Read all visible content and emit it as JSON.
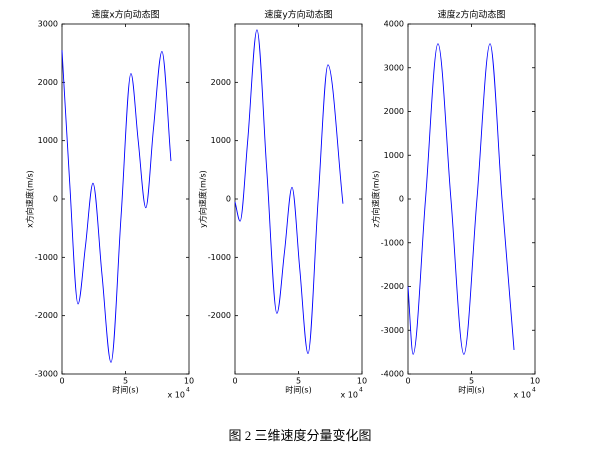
{
  "chart_data": [
    {
      "type": "line",
      "title": "速度x方向动态图",
      "xlabel": "时间(s)",
      "ylabel": "x方向速度(m/s)",
      "xlim": [
        0,
        10
      ],
      "xticks": [
        0,
        5,
        10
      ],
      "ylim": [
        -3000,
        3000
      ],
      "yticks": [
        -3000,
        -2000,
        -1000,
        0,
        1000,
        2000,
        3000
      ],
      "x_scale_text": "x 10",
      "x_scale_exponent": "4",
      "series": [
        {
          "color": "#0000ff",
          "x": [
            0,
            0.6,
            1.26,
            1.85,
            2.44,
            3.15,
            3.86,
            4.65,
            5.43,
            6.0,
            6.6,
            7.2,
            7.87,
            8.58
          ],
          "values": [
            2550,
            300,
            -1800,
            -800,
            270,
            -1300,
            -2800,
            -300,
            2150,
            1000,
            -150,
            1200,
            2530,
            650
          ]
        }
      ]
    },
    {
      "type": "line",
      "title": "速度y方向动态图",
      "xlabel": "时间(s)",
      "ylabel": "y方向速度(m/s)",
      "xlim": [
        0,
        10
      ],
      "xticks": [
        0,
        5,
        10
      ],
      "ylim": [
        -3000,
        3000
      ],
      "yticks": [
        -2000,
        -1000,
        0,
        1000,
        2000
      ],
      "x_scale_text": "x 10",
      "x_scale_exponent": "4",
      "series": [
        {
          "color": "#0000ff",
          "x": [
            0,
            0.4,
            1.0,
            1.73,
            2.5,
            3.3,
            3.9,
            4.49,
            5.1,
            5.75,
            6.55,
            7.32,
            8.5
          ],
          "values": [
            -50,
            -380,
            1000,
            2900,
            500,
            -1960,
            -900,
            200,
            -1200,
            -2650,
            0,
            2300,
            -80
          ]
        }
      ]
    },
    {
      "type": "line",
      "title": "速度z方向动态图",
      "xlabel": "时间(s)",
      "ylabel": "z方向速度(m/s)",
      "xlim": [
        0,
        10
      ],
      "xticks": [
        0,
        5,
        10
      ],
      "ylim": [
        -4000,
        4000
      ],
      "yticks": [
        -4000,
        -3000,
        -2000,
        -1000,
        0,
        1000,
        2000,
        3000,
        4000
      ],
      "x_scale_text": "x 10",
      "x_scale_exponent": "4",
      "series": [
        {
          "color": "#0000ff",
          "x": [
            0,
            0.4,
            1.38,
            2.36,
            3.38,
            4.4,
            5.43,
            6.46,
            7.4,
            8.35
          ],
          "values": [
            -2000,
            -3550,
            0,
            3550,
            0,
            -3550,
            0,
            3550,
            0,
            -3450
          ]
        }
      ]
    }
  ],
  "caption": "图 2  三维速度分量变化图"
}
